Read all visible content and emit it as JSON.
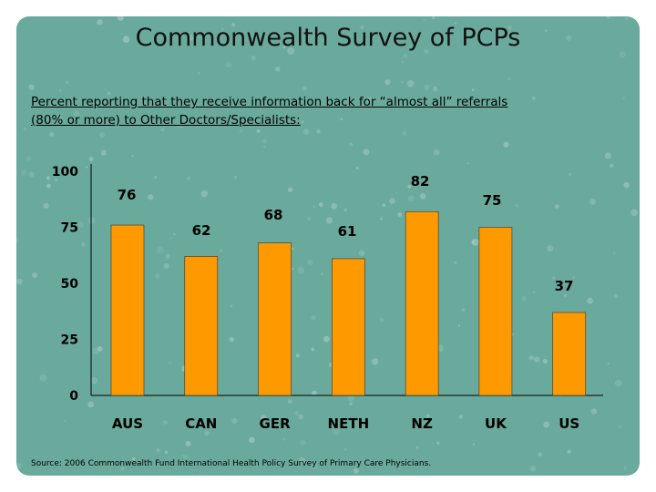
{
  "slide": {
    "title": "Commonwealth Survey of PCPs",
    "subtitle_line1": "Percent reporting that they receive information back for “almost all” referrals",
    "subtitle_line2": "(80% or more) to Other Doctors/Specialists:",
    "source": "Source: 2006 Commonwealth Fund International Health Policy Survey of Primary Care Physicians."
  },
  "colors": {
    "background": "#6aaa9c",
    "bar": "#ff9900"
  },
  "chart_data": {
    "type": "bar",
    "categories": [
      "AUS",
      "CAN",
      "GER",
      "NETH",
      "NZ",
      "UK",
      "US"
    ],
    "values": [
      76,
      62,
      68,
      61,
      82,
      75,
      37
    ],
    "ylim": [
      0,
      100
    ],
    "yticks": [
      "0",
      "25",
      "50",
      "75",
      "100"
    ],
    "value_labels": [
      "76",
      "62",
      "68",
      "61",
      "82",
      "75",
      "37"
    ],
    "grid": false,
    "legend": "none"
  }
}
